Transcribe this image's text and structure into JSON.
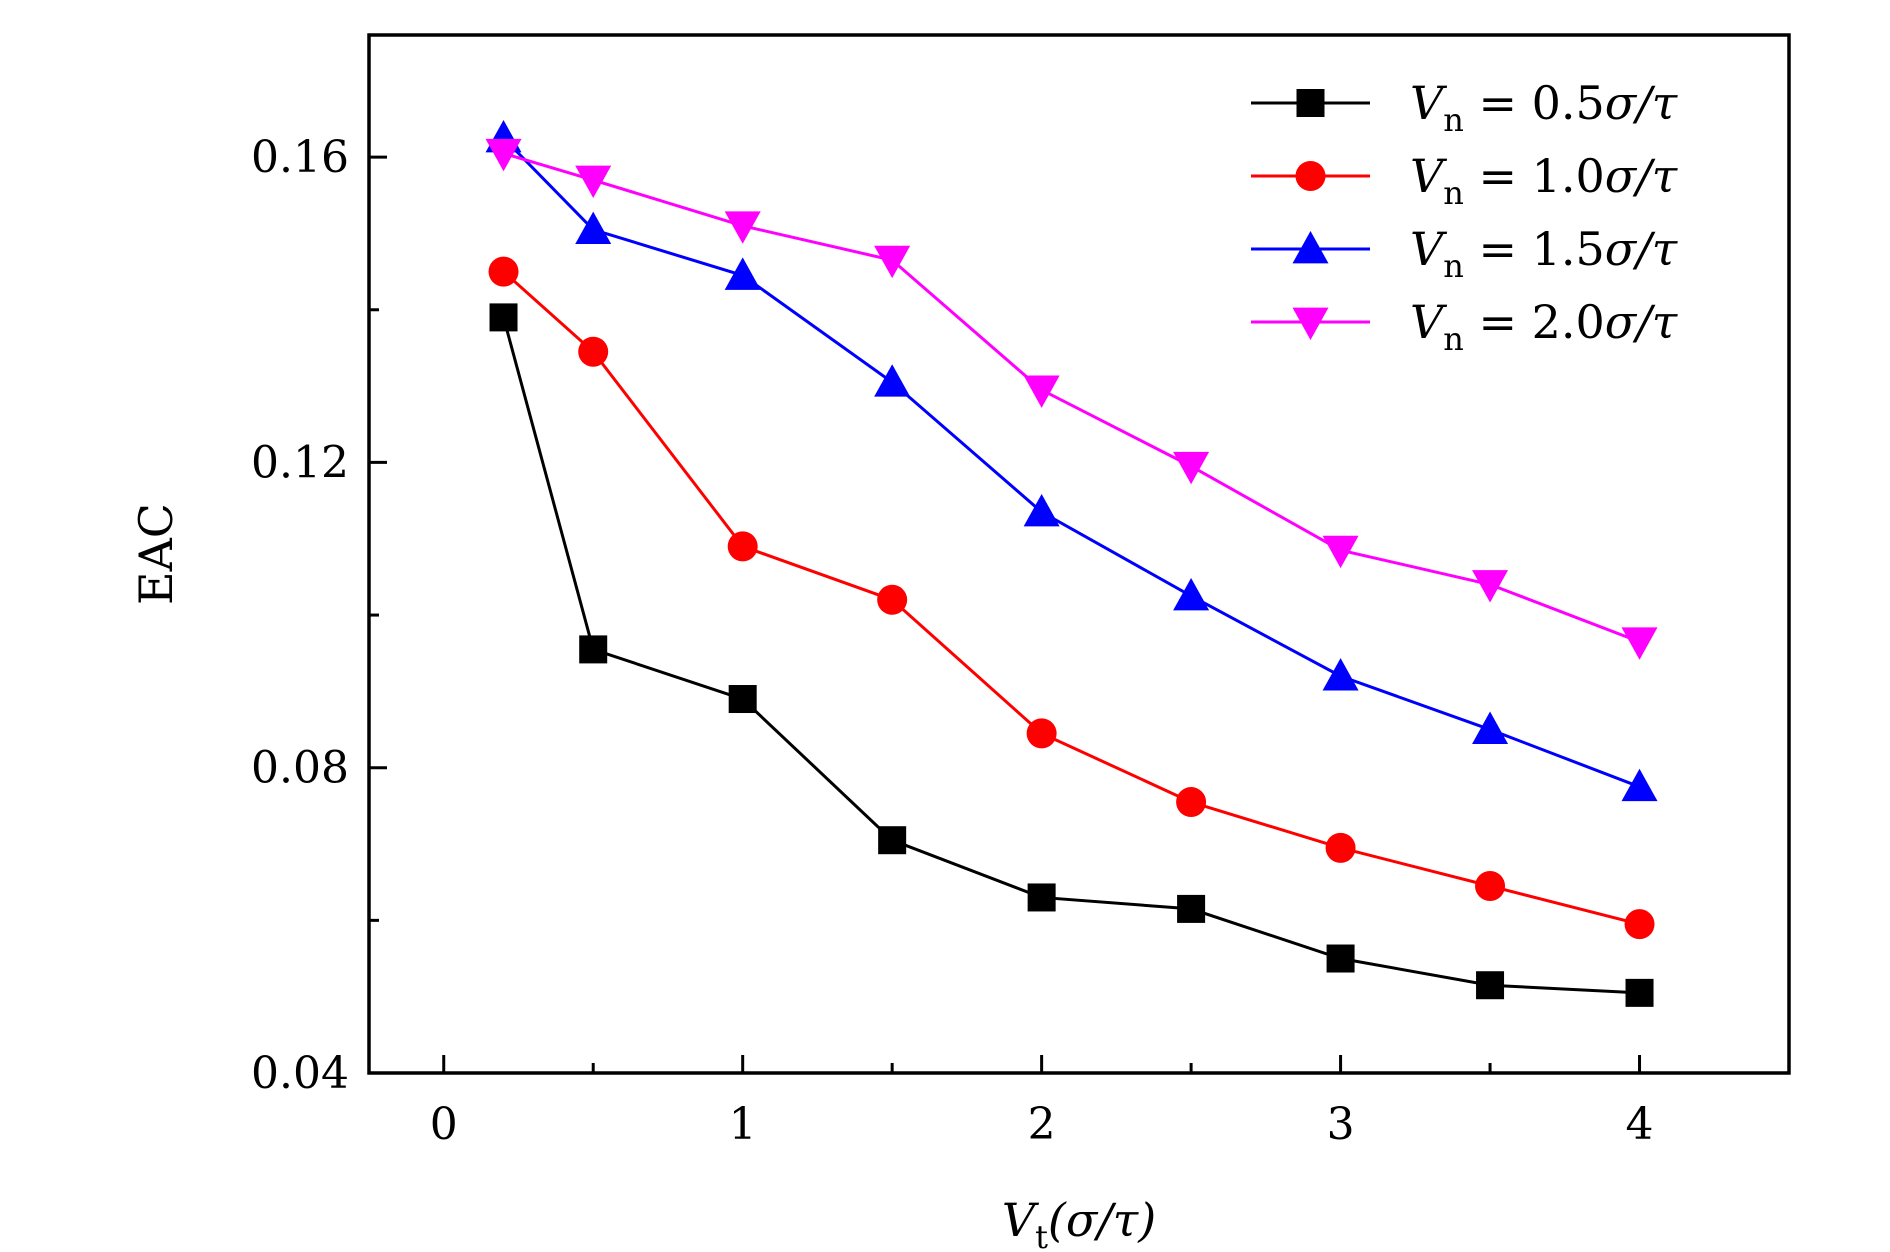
{
  "chart_data": {
    "type": "line",
    "title": "",
    "xlabel": {
      "main": "V",
      "sub": "t",
      "unit": "(σ/τ)"
    },
    "ylabel": "EAC",
    "xlim": [
      -0.25,
      4.5
    ],
    "ylim": [
      0.04,
      0.176
    ],
    "xticks": [
      0,
      1,
      2,
      3,
      4
    ],
    "xtick_labels": [
      "0",
      "1",
      "2",
      "3",
      "4"
    ],
    "xminor": [
      0.5,
      1.5,
      2.5,
      3.5
    ],
    "yticks": [
      0.04,
      0.08,
      0.12,
      0.16
    ],
    "ytick_labels": [
      "0.04",
      "0.08",
      "0.12",
      "0.16"
    ],
    "yminor": [
      0.06,
      0.1,
      0.14
    ],
    "grid": false,
    "legend_position": "top-right",
    "x": [
      0.2,
      0.5,
      1.0,
      1.5,
      2.0,
      2.5,
      3.0,
      3.5,
      4.0
    ],
    "series": [
      {
        "name": "V_n = 0.5σ/τ",
        "label": {
          "var": "V",
          "sub": "n",
          "eq": " = 0.5",
          "unit": "σ/τ"
        },
        "color": "#000000",
        "marker": "square",
        "values": [
          0.139,
          0.0955,
          0.089,
          0.0705,
          0.063,
          0.0615,
          0.055,
          0.0515,
          0.0505
        ]
      },
      {
        "name": "V_n = 1.0σ/τ",
        "label": {
          "var": "V",
          "sub": "n",
          "eq": " = 1.0",
          "unit": "σ/τ"
        },
        "color": "#ff0000",
        "marker": "circle",
        "values": [
          0.145,
          0.1345,
          0.109,
          0.102,
          0.0845,
          0.0755,
          0.0695,
          0.0645,
          0.0595
        ]
      },
      {
        "name": "V_n = 1.5σ/τ",
        "label": {
          "var": "V",
          "sub": "n",
          "eq": " = 1.5",
          "unit": "σ/τ"
        },
        "color": "#0000ff",
        "marker": "triangle-up",
        "values": [
          0.1625,
          0.1505,
          0.1445,
          0.1305,
          0.1135,
          0.1025,
          0.092,
          0.085,
          0.0775
        ]
      },
      {
        "name": "V_n = 2.0σ/τ",
        "label": {
          "var": "V",
          "sub": "n",
          "eq": " = 2.0",
          "unit": "σ/τ"
        },
        "color": "#ff00ff",
        "marker": "triangle-down",
        "values": [
          0.1605,
          0.157,
          0.151,
          0.1465,
          0.1295,
          0.1195,
          0.1085,
          0.104,
          0.0965
        ]
      }
    ]
  }
}
